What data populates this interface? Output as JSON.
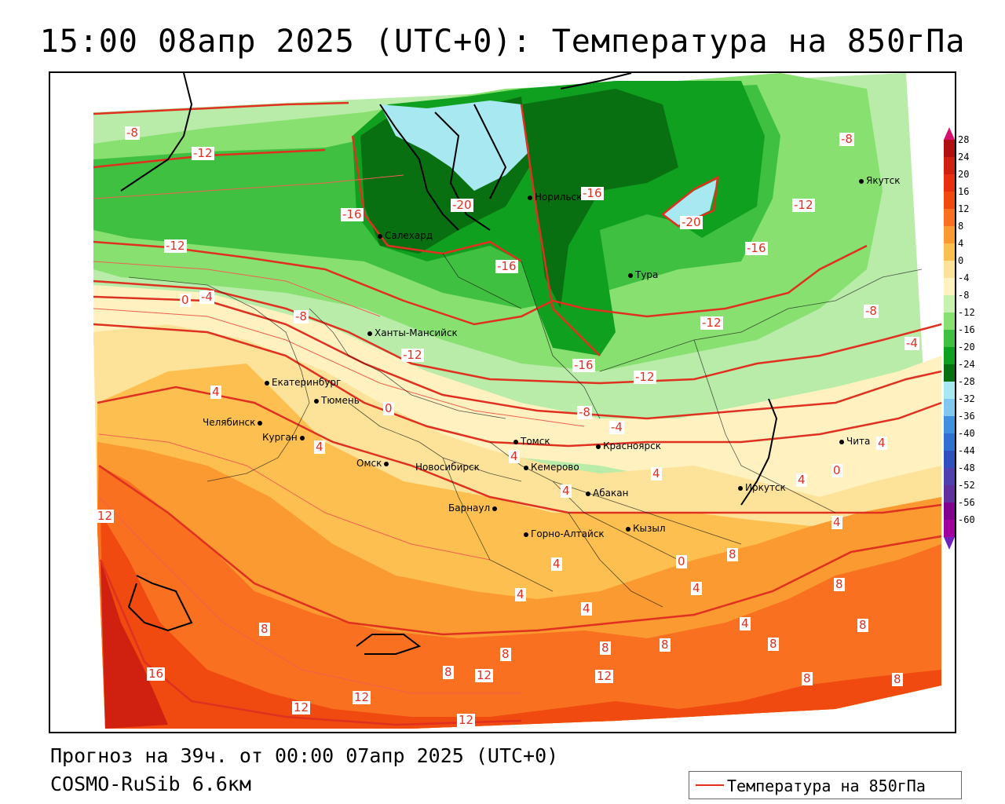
{
  "title": "15:00 08апр 2025 (UTC+0): Температура на 850гПа",
  "footer": {
    "forecast": "Прогноз на 39ч. от 00:00 07апр 2025 (UTC+0)",
    "model": "COSMO-RuSib 6.6км"
  },
  "legend": {
    "label": "Температура на 850гПа",
    "line_color": "#e03020"
  },
  "colorbar": {
    "ticks": [
      "28",
      "24",
      "20",
      "16",
      "12",
      "8",
      "4",
      "0",
      "-4",
      "-8",
      "-12",
      "-16",
      "-20",
      "-24",
      "-28",
      "-32",
      "-36",
      "-40",
      "-44",
      "-48",
      "-52",
      "-56",
      "-60"
    ],
    "colors": [
      "#b01010",
      "#d02010",
      "#e83010",
      "#f04a10",
      "#f87020",
      "#fb9a30",
      "#fdc050",
      "#fde39a",
      "#fff2c0",
      "#c8f2b0",
      "#88e070",
      "#40c040",
      "#10a020",
      "#087010",
      "#a8e8f0",
      "#80c8f0",
      "#4090e0",
      "#3070d0",
      "#3050c0",
      "#5040b0",
      "#6030a0",
      "#800090",
      "#a000a0"
    ]
  },
  "cities": [
    {
      "name": "Якутск"
    },
    {
      "name": "Норильск"
    },
    {
      "name": "Салехард"
    },
    {
      "name": "Тура"
    },
    {
      "name": "Ханты-Мансийск"
    },
    {
      "name": "Екатеринбург"
    },
    {
      "name": "Тюмень"
    },
    {
      "name": "Челябинск"
    },
    {
      "name": "Курган"
    },
    {
      "name": "Омск"
    },
    {
      "name": "Новосибирск"
    },
    {
      "name": "Томск"
    },
    {
      "name": "Кемерово"
    },
    {
      "name": "Красноярск"
    },
    {
      "name": "Абакан"
    },
    {
      "name": "Иркутск"
    },
    {
      "name": "Чита"
    },
    {
      "name": "Барнаул"
    },
    {
      "name": "Горно-Алтайск"
    },
    {
      "name": "Кызыл"
    }
  ],
  "contour_labels": [
    "-8",
    "-12",
    "-16",
    "-20",
    "-20",
    "-16",
    "-16",
    "-12",
    "-8",
    "-12",
    "-16",
    "-12",
    "-16",
    "-12",
    "-8",
    "-4",
    "0",
    "-4",
    "-8",
    "-12",
    "-8",
    "-4",
    "0",
    "0",
    "4",
    "4",
    "4",
    "4",
    "4",
    "4",
    "0",
    "4",
    "4",
    "12",
    "8",
    "16",
    "12",
    "12",
    "8",
    "12",
    "12",
    "12",
    "8",
    "8",
    "8",
    "8",
    "8",
    "8",
    "4",
    "4",
    "4",
    "4",
    "4",
    "8",
    "8",
    "8"
  ]
}
